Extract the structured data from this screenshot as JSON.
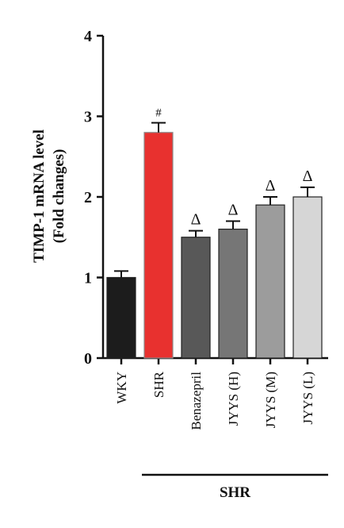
{
  "chart_data": {
    "type": "bar",
    "title": "",
    "ylabel": [
      "TIMP-1 mRNA level",
      "(Fold changes)"
    ],
    "xlabel": "",
    "ylim": [
      0,
      4
    ],
    "yticks": [
      "0",
      "1",
      "2",
      "3",
      "4"
    ],
    "categories": [
      "WKY",
      "SHR",
      "Benazepril",
      "JYYS (H)",
      "JYYS (M)",
      "JYYS (L)"
    ],
    "values": [
      1.0,
      2.8,
      1.5,
      1.6,
      1.9,
      2.0
    ],
    "errors": [
      0.08,
      0.12,
      0.08,
      0.1,
      0.1,
      0.12
    ],
    "colors": [
      "#1c1c1c",
      "#e8312f",
      "#585858",
      "#767676",
      "#9c9c9c",
      "#d6d6d6"
    ],
    "annotations": [
      "",
      "#",
      "Δ",
      "Δ",
      "Δ",
      "Δ"
    ],
    "group": {
      "label": "SHR",
      "from": 1,
      "to": 5
    },
    "grid": false,
    "legend": "none"
  }
}
